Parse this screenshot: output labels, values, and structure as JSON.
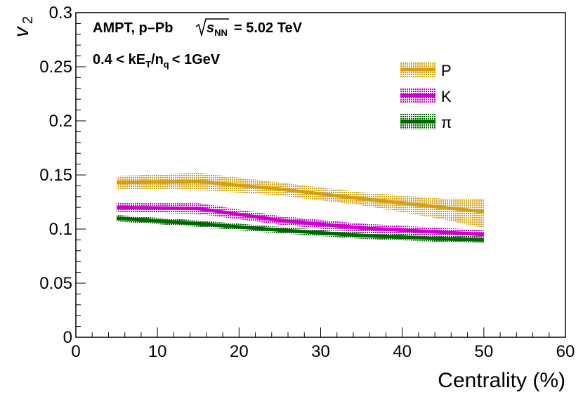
{
  "chart_data": {
    "type": "line",
    "title": "",
    "xlabel": "Centrality (%)",
    "ylabel": "v",
    "ylabel_subscript": "2",
    "xlim": [
      0,
      60
    ],
    "ylim": [
      0,
      0.3
    ],
    "x_ticks": [
      0,
      10,
      20,
      30,
      40,
      50,
      60
    ],
    "x_tick_labels": [
      "0",
      "10",
      "20",
      "30",
      "40",
      "50",
      "60"
    ],
    "y_ticks": [
      0,
      0.05,
      0.1,
      0.15,
      0.2,
      0.25,
      0.3
    ],
    "y_tick_labels": [
      "0",
      "0.05",
      "0.1",
      "0.15",
      "0.2",
      "0.25",
      "0.3"
    ],
    "grid": false,
    "legend_position": "top-right",
    "annotations": {
      "system": "AMPT, p–Pb",
      "energy_sqrt": "s",
      "energy_sub": "NN",
      "energy_value": "= 5.02 TeV",
      "cut_prefix": "0.4 < kE",
      "cut_sub1": "T",
      "cut_mid": "/n",
      "cut_sub2": "q",
      "cut_suffix": "< 1GeV"
    },
    "series": [
      {
        "name": "P",
        "color": "#d4a017",
        "x": [
          5,
          15,
          25,
          35,
          45,
          50
        ],
        "values": [
          0.143,
          0.144,
          0.137,
          0.128,
          0.12,
          0.116
        ],
        "err_low": [
          0.006,
          0.008,
          0.006,
          0.006,
          0.011,
          0.015
        ],
        "err_high": [
          0.006,
          0.008,
          0.006,
          0.006,
          0.008,
          0.012
        ]
      },
      {
        "name": "K",
        "color": "#cc00cc",
        "x": [
          5,
          15,
          25,
          35,
          45,
          50
        ],
        "values": [
          0.12,
          0.119,
          0.108,
          0.101,
          0.097,
          0.095
        ],
        "err_low": [
          0.004,
          0.005,
          0.004,
          0.004,
          0.004,
          0.004
        ],
        "err_high": [
          0.004,
          0.005,
          0.004,
          0.004,
          0.004,
          0.004
        ]
      },
      {
        "name": "π",
        "color": "#006600",
        "x": [
          5,
          15,
          25,
          35,
          45,
          50
        ],
        "values": [
          0.11,
          0.105,
          0.099,
          0.094,
          0.091,
          0.09
        ],
        "err_low": [
          0.003,
          0.003,
          0.003,
          0.003,
          0.003,
          0.003
        ],
        "err_high": [
          0.003,
          0.003,
          0.003,
          0.003,
          0.003,
          0.003
        ]
      }
    ]
  }
}
